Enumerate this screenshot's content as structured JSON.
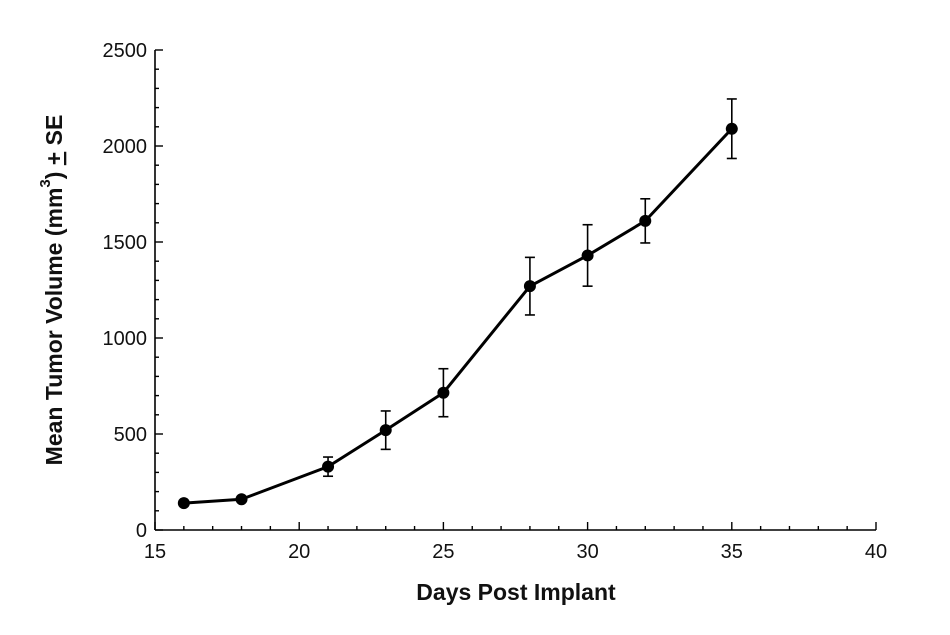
{
  "chart_data": {
    "type": "line",
    "xlabel": "Days Post Implant",
    "ylabel_parts": {
      "main": "Mean Tumor Volume (mm",
      "sup": "3",
      "close": ") ",
      "pm": "+",
      "tail": " SE"
    },
    "xlim": [
      15,
      40
    ],
    "ylim": [
      0,
      2500
    ],
    "x_ticks": [
      15,
      20,
      25,
      30,
      35,
      40
    ],
    "y_ticks": [
      0,
      500,
      1000,
      1500,
      2000,
      2500
    ],
    "x_minor_step": 1,
    "y_minor_step": 100,
    "grid": false,
    "series": [
      {
        "x": [
          16,
          18,
          21,
          23,
          25,
          28,
          30,
          32,
          35
        ],
        "y": [
          140,
          160,
          330,
          520,
          715,
          1270,
          1430,
          1610,
          2090
        ],
        "error": [
          12,
          12,
          50,
          100,
          125,
          150,
          160,
          115,
          155
        ],
        "color": "#000000"
      }
    ]
  }
}
